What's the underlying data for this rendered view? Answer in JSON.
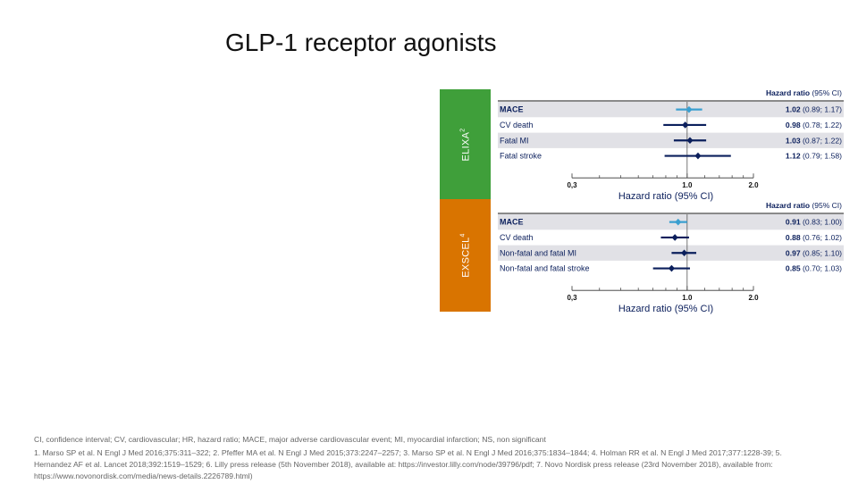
{
  "title": "GLP-1 receptor agonists",
  "colors": {
    "elixa": "#3f9f3a",
    "exscel": "#d97400",
    "mace": "#3a9fd0",
    "other": "#0b1f5c",
    "shade": "#e1e1e6"
  },
  "chart_data": [
    {
      "type": "forest",
      "trial": "ELIXA",
      "trial_ref": "2",
      "header": "Hazard ratio",
      "header_ci": "(95% CI)",
      "xlabel": "Hazard ratio (95% CI)",
      "xscale": "log",
      "xlim": [
        0.3,
        2.0
      ],
      "ticks": [
        {
          "value": 0.3,
          "label": "0,3"
        },
        {
          "value": 1.0,
          "label": "1.0"
        },
        {
          "value": 2.0,
          "label": "2.0"
        }
      ],
      "rows": [
        {
          "label": "MACE",
          "hr": 1.02,
          "lo": 0.89,
          "hi": 1.17,
          "hr_text": "1.02",
          "ci_text": "(0.89; 1.17)",
          "bold": true
        },
        {
          "label": "CV death",
          "hr": 0.98,
          "lo": 0.78,
          "hi": 1.22,
          "hr_text": "0.98",
          "ci_text": "(0.78; 1.22)",
          "bold": false
        },
        {
          "label": "Fatal MI",
          "hr": 1.03,
          "lo": 0.87,
          "hi": 1.22,
          "hr_text": "1.03",
          "ci_text": "(0.87; 1.22)",
          "bold": false
        },
        {
          "label": "Fatal stroke",
          "hr": 1.12,
          "lo": 0.79,
          "hi": 1.58,
          "hr_text": "1.12",
          "ci_text": "(0.79; 1.58)",
          "bold": false
        }
      ]
    },
    {
      "type": "forest",
      "trial": "EXSCEL",
      "trial_ref": "4",
      "header": "Hazard ratio",
      "header_ci": "(95% CI)",
      "xlabel": "Hazard ratio (95% CI)",
      "xscale": "log",
      "xlim": [
        0.3,
        2.0
      ],
      "ticks": [
        {
          "value": 0.3,
          "label": "0,3"
        },
        {
          "value": 1.0,
          "label": "1.0"
        },
        {
          "value": 2.0,
          "label": "2.0"
        }
      ],
      "rows": [
        {
          "label": "MACE",
          "hr": 0.91,
          "lo": 0.83,
          "hi": 1.0,
          "hr_text": "0.91",
          "ci_text": "(0.83; 1.00)",
          "bold": true
        },
        {
          "label": "CV death",
          "hr": 0.88,
          "lo": 0.76,
          "hi": 1.02,
          "hr_text": "0.88",
          "ci_text": "(0.76; 1.02)",
          "bold": false
        },
        {
          "label": "Non-fatal and fatal MI",
          "hr": 0.97,
          "lo": 0.85,
          "hi": 1.1,
          "hr_text": "0.97",
          "ci_text": "(0.85; 1.10)",
          "bold": false
        },
        {
          "label": "Non-fatal and fatal stroke",
          "hr": 0.85,
          "lo": 0.7,
          "hi": 1.03,
          "hr_text": "0.85",
          "ci_text": "(0.70; 1.03)",
          "bold": false
        }
      ]
    }
  ],
  "footer": {
    "abbreviations": "CI, confidence interval; CV, cardiovascular; HR, hazard ratio; MACE, major adverse cardiovascular event; MI, myocardial infarction; NS, non significant",
    "references": "1. Marso SP et al. N Engl J Med 2016;375:311–322; 2. Pfeffer MA et al. N Engl J Med 2015;373:2247–2257; 3. Marso SP et al. N Engl J Med 2016;375:1834–1844; 4. Holman RR et al. N Engl J Med 2017;377:1228-39; 5. Hernandez AF et al. Lancet 2018;392:1519–1529; 6. Lilly press release (5th November 2018), available at: https://investor.lilly.com/node/39796/pdf; 7. Novo Nordisk press release (23rd November 2018), available from: https://www.novonordisk.com/media/news-details.2226789.html)"
  }
}
